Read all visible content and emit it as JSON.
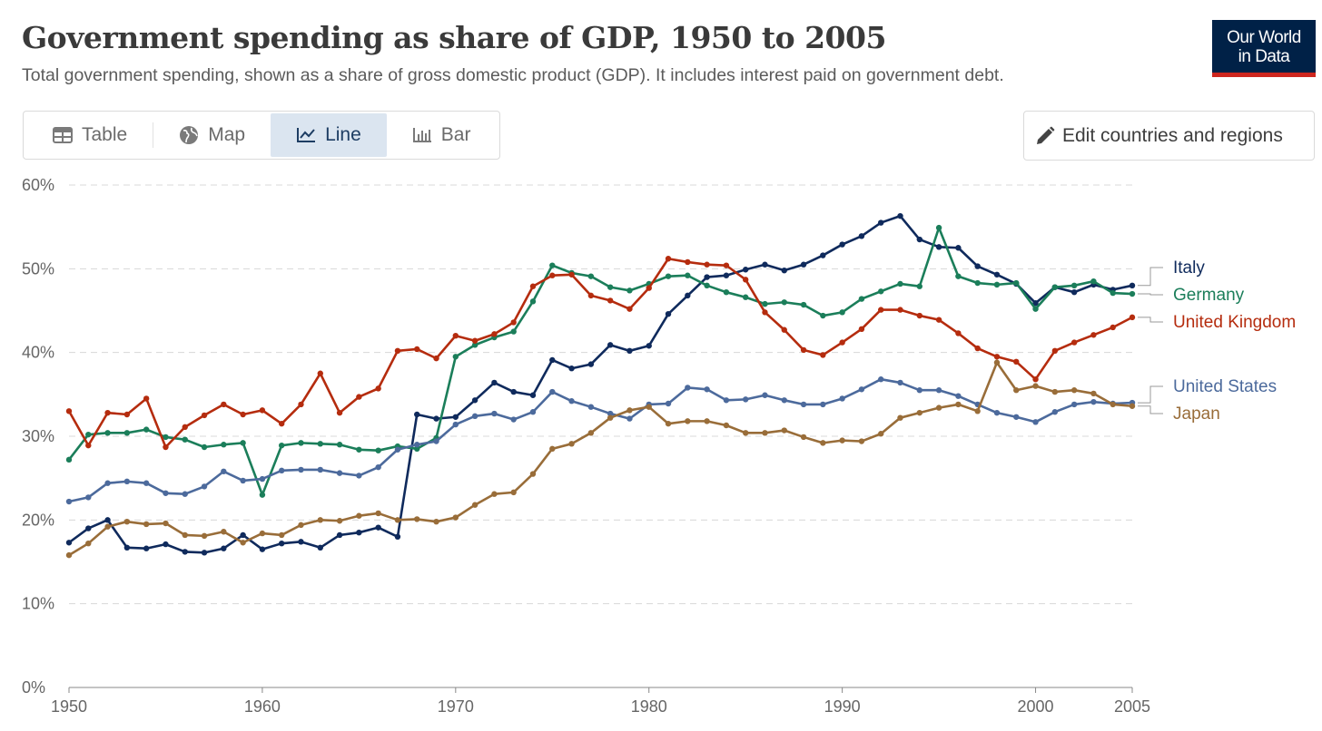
{
  "header": {
    "title": "Government spending as share of GDP, 1950 to 2005",
    "subtitle": "Total government spending, shown as a share of gross domestic product (GDP). It includes interest paid on government debt.",
    "logo_line1": "Our World",
    "logo_line2": "in Data"
  },
  "tabs": [
    {
      "label": "Table",
      "icon": "table-icon"
    },
    {
      "label": "Map",
      "icon": "globe-icon"
    },
    {
      "label": "Line",
      "icon": "line-chart-icon",
      "active": true
    },
    {
      "label": "Bar",
      "icon": "bar-chart-icon"
    }
  ],
  "edit_button": {
    "label": "Edit countries and regions",
    "icon": "pencil-icon"
  },
  "chart_data": {
    "type": "line",
    "title": "Government spending as share of GDP, 1950 to 2005",
    "xlabel": "",
    "ylabel": "",
    "xlim": [
      1950,
      2005
    ],
    "ylim": [
      0,
      60
    ],
    "x_ticks": [
      "1950",
      "1960",
      "1970",
      "1980",
      "1990",
      "2000",
      "2005"
    ],
    "x_tick_values": [
      1950,
      1960,
      1970,
      1980,
      1990,
      2000,
      2005
    ],
    "y_ticks": [
      "0%",
      "10%",
      "20%",
      "30%",
      "40%",
      "50%",
      "60%"
    ],
    "y_tick_values": [
      0,
      10,
      20,
      30,
      40,
      50,
      60
    ],
    "grid": "horizontal-dashed",
    "legend": "right-end-labels",
    "x_start": 1950,
    "series": [
      {
        "name": "Italy",
        "color": "#0f2a5c",
        "values": [
          17.3,
          19.0,
          20.0,
          16.7,
          16.6,
          17.1,
          16.2,
          16.1,
          16.6,
          18.2,
          16.5,
          17.2,
          17.4,
          16.7,
          18.2,
          18.5,
          19.1,
          18.0,
          32.6,
          32.1,
          32.3,
          34.3,
          36.4,
          35.3,
          34.9,
          39.1,
          38.1,
          38.6,
          40.9,
          40.2,
          40.8,
          44.6,
          46.8,
          49.0,
          49.2,
          49.9,
          50.5,
          49.8,
          50.5,
          51.6,
          52.9,
          53.9,
          55.5,
          56.3,
          53.5,
          52.6,
          52.5,
          50.3,
          49.3,
          48.2,
          45.9,
          47.8,
          47.2,
          48.1,
          47.5,
          48.0
        ]
      },
      {
        "name": "Germany",
        "color": "#1b7e5a",
        "values": [
          27.2,
          30.2,
          30.4,
          30.4,
          30.8,
          29.9,
          29.6,
          28.7,
          29.0,
          29.2,
          23.0,
          28.9,
          29.2,
          29.1,
          29.0,
          28.4,
          28.3,
          28.8,
          28.5,
          29.8,
          39.5,
          40.9,
          41.8,
          42.5,
          46.1,
          50.4,
          49.5,
          49.1,
          47.8,
          47.4,
          48.2,
          49.1,
          49.2,
          48.0,
          47.2,
          46.6,
          45.8,
          46.0,
          45.7,
          44.4,
          44.8,
          46.4,
          47.3,
          48.2,
          47.9,
          54.9,
          49.1,
          48.3,
          48.1,
          48.3,
          45.2,
          47.8,
          48.0,
          48.5,
          47.1,
          47.0
        ]
      },
      {
        "name": "United Kingdom",
        "color": "#b52c0e",
        "values": [
          33.0,
          28.9,
          32.8,
          32.6,
          34.5,
          28.7,
          31.1,
          32.5,
          33.8,
          32.6,
          33.1,
          31.5,
          33.8,
          37.5,
          32.8,
          34.7,
          35.7,
          40.2,
          40.4,
          39.3,
          42.0,
          41.4,
          42.2,
          43.6,
          47.9,
          49.2,
          49.3,
          46.8,
          46.2,
          45.2,
          47.7,
          51.2,
          50.8,
          50.5,
          50.4,
          48.7,
          44.8,
          42.7,
          40.3,
          39.7,
          41.2,
          42.8,
          45.1,
          45.1,
          44.4,
          43.9,
          42.3,
          40.5,
          39.5,
          38.9,
          36.8,
          40.2,
          41.2,
          42.1,
          43.0,
          44.2
        ]
      },
      {
        "name": "United States",
        "color": "#4c6a9c",
        "values": [
          22.2,
          22.7,
          24.4,
          24.6,
          24.4,
          23.2,
          23.1,
          24.0,
          25.8,
          24.7,
          24.9,
          25.9,
          26.0,
          26.0,
          25.6,
          25.3,
          26.3,
          28.4,
          29.0,
          29.4,
          31.4,
          32.4,
          32.7,
          32.0,
          32.9,
          35.3,
          34.2,
          33.5,
          32.7,
          32.1,
          33.8,
          33.9,
          35.8,
          35.6,
          34.3,
          34.4,
          34.9,
          34.3,
          33.8,
          33.8,
          34.5,
          35.6,
          36.8,
          36.4,
          35.5,
          35.5,
          34.8,
          33.8,
          32.8,
          32.3,
          31.7,
          32.9,
          33.8,
          34.1,
          33.9,
          34.0
        ]
      },
      {
        "name": "Japan",
        "color": "#996d39",
        "values": [
          15.8,
          17.2,
          19.2,
          19.8,
          19.5,
          19.6,
          18.2,
          18.1,
          18.6,
          17.3,
          18.4,
          18.2,
          19.4,
          20.0,
          19.9,
          20.5,
          20.8,
          20.0,
          20.1,
          19.8,
          20.3,
          21.8,
          23.1,
          23.3,
          25.5,
          28.5,
          29.1,
          30.4,
          32.2,
          33.1,
          33.5,
          31.5,
          31.8,
          31.8,
          31.3,
          30.4,
          30.4,
          30.7,
          29.9,
          29.2,
          29.5,
          29.4,
          30.3,
          32.2,
          32.8,
          33.4,
          33.8,
          33.0,
          38.8,
          35.5,
          36.0,
          35.3,
          35.5,
          35.1,
          33.8,
          33.6
        ]
      }
    ]
  }
}
